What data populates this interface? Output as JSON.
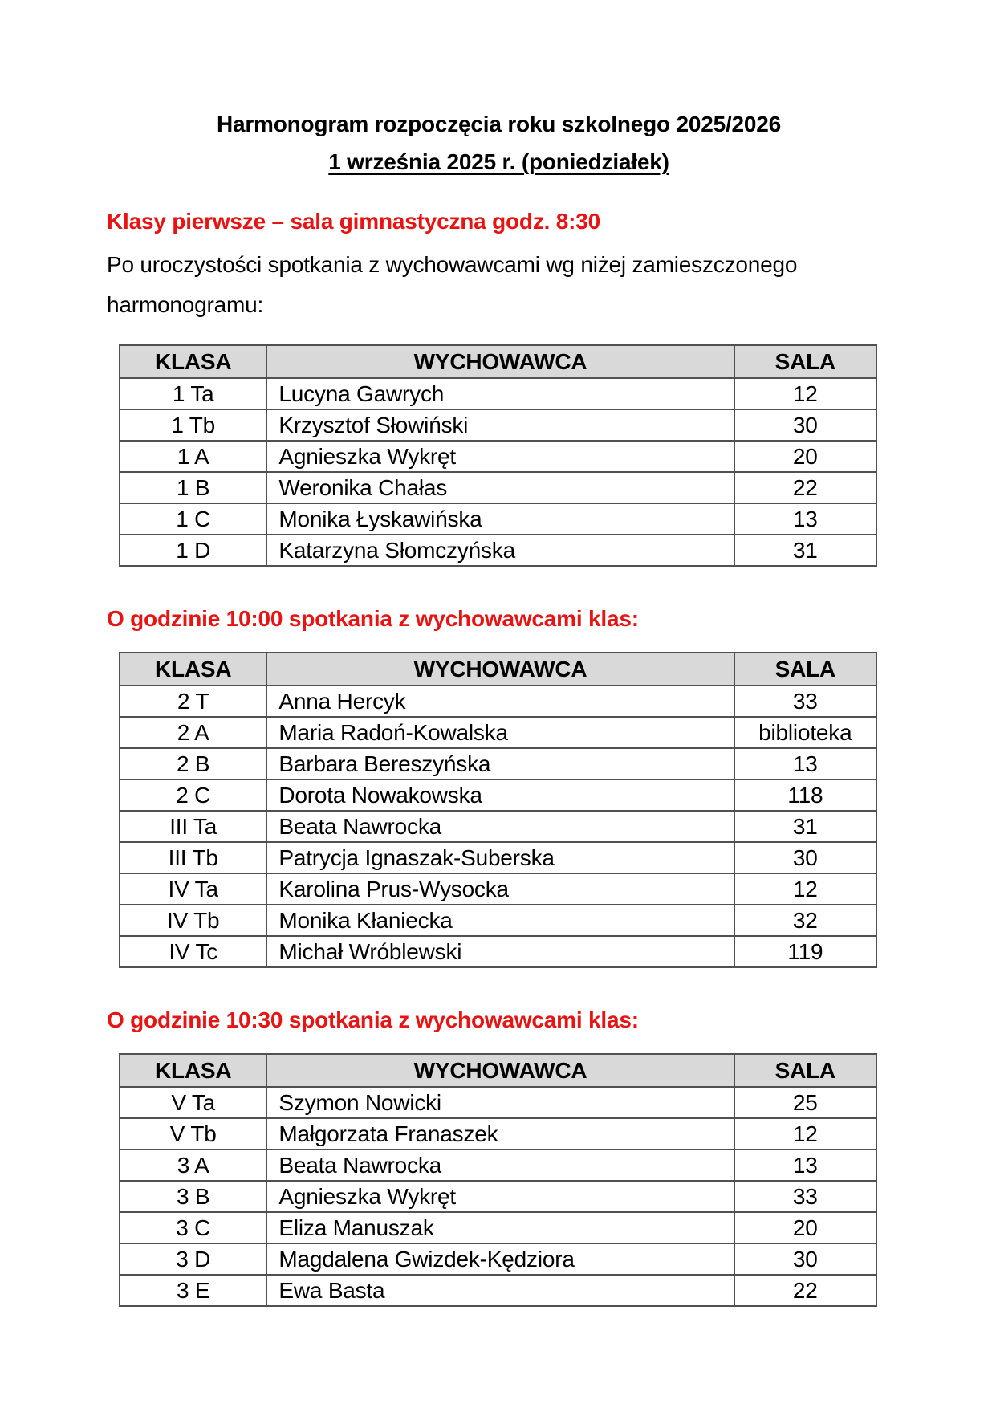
{
  "doc": {
    "title": "Harmonogram rozpoczęcia roku szkolnego 2025/2026",
    "subtitle": "1 września 2025 r. (poniedziałek)"
  },
  "colors": {
    "heading_red": "#e81414",
    "table_header_bg": "#d9d9d9",
    "table_border": "#515151",
    "text": "#000000",
    "page_bg": "#ffffff"
  },
  "sections": [
    {
      "heading": "Klasy pierwsze – sala gimnastyczna godz. 8:30",
      "intro": "Po uroczystości spotkania z wychowawcami wg niżej zamieszczonego harmonogramu:",
      "table": {
        "headers": [
          "KLASA",
          "WYCHOWAWCA",
          "SALA"
        ],
        "rows": [
          [
            "1 Ta",
            "Lucyna Gawrych",
            "12"
          ],
          [
            "1 Tb",
            "Krzysztof Słowiński",
            "30"
          ],
          [
            "1 A",
            "Agnieszka Wykręt",
            "20"
          ],
          [
            "1 B",
            "Weronika Chałas",
            "22"
          ],
          [
            "1 C",
            "Monika Łyskawińska",
            "13"
          ],
          [
            "1 D",
            "Katarzyna Słomczyńska",
            "31"
          ]
        ]
      }
    },
    {
      "heading": "O godzinie 10:00 spotkania z wychowawcami klas:",
      "intro": null,
      "table": {
        "headers": [
          "KLASA",
          "WYCHOWAWCA",
          "SALA"
        ],
        "rows": [
          [
            "2 T",
            "Anna Hercyk",
            "33"
          ],
          [
            "2 A",
            "Maria Radoń-Kowalska",
            "biblioteka"
          ],
          [
            "2 B",
            "Barbara Bereszyńska",
            "13"
          ],
          [
            "2 C",
            "Dorota Nowakowska",
            "118"
          ],
          [
            "III Ta",
            "Beata Nawrocka",
            "31"
          ],
          [
            "III Tb",
            "Patrycja Ignaszak-Suberska",
            "30"
          ],
          [
            "IV Ta",
            "Karolina Prus-Wysocka",
            "12"
          ],
          [
            "IV Tb",
            "Monika Kłaniecka",
            "32"
          ],
          [
            "IV Tc",
            "Michał Wróblewski",
            "119"
          ]
        ]
      }
    },
    {
      "heading": "O godzinie 10:30 spotkania z wychowawcami klas:",
      "intro": null,
      "table": {
        "headers": [
          "KLASA",
          "WYCHOWAWCA",
          "SALA"
        ],
        "rows": [
          [
            "V Ta",
            "Szymon Nowicki",
            "25"
          ],
          [
            "V Tb",
            "Małgorzata Franaszek",
            "12"
          ],
          [
            "3 A",
            "Beata Nawrocka",
            "13"
          ],
          [
            "3 B",
            "Agnieszka Wykręt",
            "33"
          ],
          [
            "3 C",
            "Eliza Manuszak",
            "20"
          ],
          [
            "3 D",
            "Magdalena Gwizdek-Kędziora",
            "30"
          ],
          [
            "3 E",
            "Ewa Basta",
            "22"
          ]
        ]
      }
    }
  ]
}
